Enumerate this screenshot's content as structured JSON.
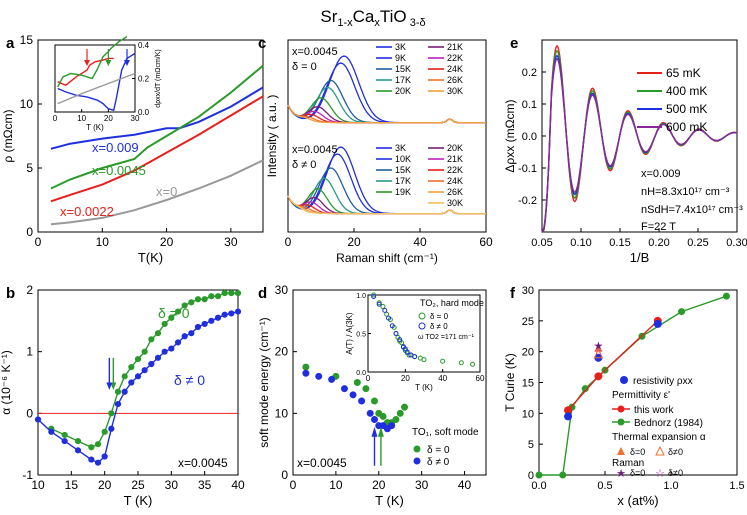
{
  "figure_title": {
    "main": "Sr",
    "sub1": "1-x",
    "mid": "Ca",
    "sub2": "x",
    "mid2": "TiO",
    "sub3": " 3-δ"
  },
  "colors": {
    "red": "#e8201c",
    "green": "#2a9a2a",
    "blue": "#1f2fe0",
    "gray": "#999999",
    "purple": "#6a1d7a",
    "magenta": "#c020c0",
    "orange": "#f07030"
  },
  "chart_data": [
    {
      "panel": "a",
      "type": "line",
      "ylabel": "ρ (mΩcm)",
      "xlabel": "T(K)",
      "xlim": [
        0,
        35
      ],
      "ylim": [
        0,
        15
      ],
      "xticks": [
        0,
        10,
        20,
        30
      ],
      "yticks": [
        0,
        5,
        10,
        15
      ],
      "series": [
        {
          "name": "x=0.009",
          "color": "#1f2fe0",
          "x": [
            2,
            5,
            10,
            15,
            18,
            20,
            22,
            25,
            30,
            35
          ],
          "y": [
            6.5,
            6.9,
            7.3,
            7.6,
            7.9,
            8.1,
            8.1,
            8.6,
            9.8,
            11.3
          ]
        },
        {
          "name": "x=0.0045",
          "color": "#2a9a2a",
          "x": [
            2,
            5,
            10,
            15,
            17,
            20,
            25,
            30,
            35
          ],
          "y": [
            3.4,
            4.1,
            5.0,
            5.7,
            6.6,
            7.5,
            9.0,
            10.9,
            13.0
          ]
        },
        {
          "name": "x=0.0022",
          "color": "#e8201c",
          "x": [
            2,
            5,
            10,
            15,
            20,
            25,
            30,
            35
          ],
          "y": [
            2.4,
            2.9,
            3.7,
            4.8,
            6.2,
            7.6,
            9.1,
            10.6
          ]
        },
        {
          "name": "x=0",
          "color": "#999999",
          "x": [
            2,
            5,
            10,
            15,
            20,
            25,
            30,
            35
          ],
          "y": [
            0.6,
            0.75,
            1.1,
            1.7,
            2.5,
            3.4,
            4.4,
            5.6
          ]
        }
      ],
      "inset": {
        "xlabel": "T (K)",
        "ylabel": "dρxx/dT (mΩcm/K)",
        "xticks": [
          0,
          10,
          20,
          30
        ],
        "yticks": [
          0.0,
          0.2,
          0.4
        ],
        "xlim": [
          0,
          30
        ],
        "ylim": [
          0,
          0.4
        ],
        "series": [
          {
            "color": "#e8201c",
            "x": [
              1,
              4,
              8,
              12,
              13,
              15,
              18,
              20,
              22
            ],
            "y": [
              0.18,
              0.16,
              0.21,
              0.25,
              0.28,
              0.3,
              0.31,
              0.32,
              0.32
            ]
          },
          {
            "color": "#2a9a2a",
            "x": [
              1,
              3,
              6,
              10,
              14,
              16,
              18,
              20,
              21,
              24,
              27
            ],
            "y": [
              0.15,
              0.21,
              0.23,
              0.22,
              0.2,
              0.26,
              0.33,
              0.36,
              0.38,
              0.42,
              0.45
            ]
          },
          {
            "color": "#1f2fe0",
            "x": [
              1,
              4,
              8,
              12,
              16,
              18,
              20,
              22,
              23,
              25,
              27,
              30
            ],
            "y": [
              0.14,
              0.12,
              0.1,
              0.09,
              0.07,
              0.05,
              0.02,
              0.01,
              0.08,
              0.25,
              0.32,
              0.35
            ]
          },
          {
            "color": "#999999",
            "x": [
              1,
              10,
              20,
              30
            ],
            "y": [
              0.05,
              0.11,
              0.17,
              0.23
            ]
          }
        ]
      }
    },
    {
      "panel": "b",
      "type": "scatter",
      "ylabel": "α (10⁻⁶ K⁻¹)",
      "xlabel": "T (K)",
      "xlim": [
        10,
        40
      ],
      "ylim": [
        -1,
        2
      ],
      "xticks": [
        10,
        15,
        20,
        25,
        30,
        35,
        40
      ],
      "yticks": [
        -1,
        0,
        1,
        2
      ],
      "annotations": [
        "δ = 0",
        "δ ≠ 0",
        "x=0.0045"
      ],
      "series": [
        {
          "name": "δ = 0",
          "color": "#2a9a2a",
          "x": [
            12,
            14,
            16,
            18,
            19,
            20,
            21,
            22,
            23,
            24,
            25,
            26,
            27,
            28,
            29,
            30,
            31,
            32,
            33,
            34,
            35,
            36,
            37,
            38,
            39,
            40
          ],
          "y": [
            -0.25,
            -0.35,
            -0.45,
            -0.55,
            -0.5,
            -0.3,
            0.0,
            0.35,
            0.6,
            0.75,
            0.88,
            1.0,
            1.2,
            1.3,
            1.45,
            1.55,
            1.65,
            1.75,
            1.8,
            1.85,
            1.85,
            1.9,
            1.9,
            1.95,
            1.95,
            1.95
          ]
        },
        {
          "name": "δ ≠ 0",
          "color": "#1f2fe0",
          "x": [
            10,
            12,
            14,
            16,
            18,
            19,
            20,
            21,
            22,
            23,
            24,
            25,
            26,
            27,
            28,
            29,
            30,
            31,
            32,
            33,
            34,
            35,
            36,
            37,
            38,
            39,
            40
          ],
          "y": [
            -0.1,
            -0.3,
            -0.45,
            -0.6,
            -0.75,
            -0.8,
            -0.7,
            -0.25,
            0.15,
            0.35,
            0.5,
            0.6,
            0.7,
            0.8,
            0.9,
            1.0,
            1.05,
            1.15,
            1.25,
            1.3,
            1.4,
            1.45,
            1.5,
            1.55,
            1.6,
            1.62,
            1.65
          ]
        }
      ]
    },
    {
      "panel": "c",
      "type": "line",
      "ylabel": "Intensity ( a.u. )",
      "xlabel": "Raman shift (cm⁻¹)",
      "xlim": [
        0,
        60
      ],
      "xticks": [
        0,
        20,
        40,
        60
      ],
      "top": {
        "labels": [
          "x=0.0045",
          "δ = 0"
        ],
        "legend": [
          "3K",
          "9K",
          "15K",
          "17K",
          "20K",
          "21K",
          "22K",
          "24K",
          "26K",
          "30K"
        ],
        "colors": [
          "#1f2fe0",
          "#1f2fe0",
          "#1f5fa0",
          "#2a9a8a",
          "#2a9a2a",
          "#7a1d7a",
          "#c020c0",
          "#e8201c",
          "#f07030",
          "#f0a040"
        ],
        "peaks": [
          17,
          16,
          13,
          12,
          10,
          9,
          8,
          7,
          6,
          5
        ],
        "heights": [
          0.95,
          0.85,
          0.6,
          0.5,
          0.35,
          0.22,
          0.15,
          0.1,
          0.06,
          0.04
        ]
      },
      "bottom": {
        "labels": [
          "x=0.0045",
          "δ ≠ 0"
        ],
        "legend": [
          "3K",
          "10K",
          "15K",
          "17K",
          "19K",
          "20K",
          "21K",
          "22K",
          "24K",
          "26K",
          "30K"
        ],
        "colors": [
          "#1f2fe0",
          "#1f2fe0",
          "#1f5fa0",
          "#2a9a8a",
          "#2a9a2a",
          "#7a1d7a",
          "#c020c0",
          "#e8201c",
          "#f07030",
          "#f0a040",
          "#f0c060"
        ],
        "peaks": [
          16,
          15,
          13,
          11,
          9,
          8,
          7,
          6,
          5,
          4,
          3
        ],
        "heights": [
          0.95,
          0.85,
          0.65,
          0.5,
          0.35,
          0.22,
          0.15,
          0.1,
          0.06,
          0.04,
          0.03
        ]
      }
    },
    {
      "panel": "d",
      "type": "scatter",
      "ylabel": "soft mode energy (cm⁻¹)",
      "xlabel": "T (K)",
      "xlim": [
        0,
        45
      ],
      "ylim": [
        0,
        30
      ],
      "xticks": [
        0,
        10,
        20,
        30,
        40
      ],
      "yticks": [
        0,
        10,
        20,
        30
      ],
      "annotations": [
        "x=0.0045",
        "TO₁, soft mode"
      ],
      "legend": [
        "δ = 0",
        "δ ≠ 0"
      ],
      "series": [
        {
          "name": "δ = 0",
          "color": "#2a9a2a",
          "x": [
            3,
            10,
            15,
            17,
            19,
            20,
            21,
            22,
            23,
            24,
            25,
            26
          ],
          "y": [
            17.5,
            16,
            15,
            14,
            12,
            10,
            9.5,
            8.5,
            8.5,
            9,
            10,
            11
          ]
        },
        {
          "name": "δ ≠ 0",
          "color": "#1f2fe0",
          "x": [
            3,
            6,
            9,
            12,
            14,
            16,
            18,
            19,
            20,
            21,
            22,
            23
          ],
          "y": [
            16.5,
            16,
            15.5,
            14,
            13,
            12,
            10,
            9,
            8,
            8,
            7.5,
            8
          ]
        }
      ],
      "inset": {
        "title": "TO₂, hard mode",
        "legend": [
          "δ = 0",
          "δ ≠ 0"
        ],
        "note": "ω TO2 =171 cm⁻¹",
        "ylabel": "A(T) / A(3K)",
        "xlabel": "T (K)",
        "xlim": [
          0,
          60
        ],
        "ylim": [
          0,
          1
        ],
        "xticks": [
          0,
          20,
          40,
          60
        ],
        "yticks": [
          0.0,
          0.5,
          1.0
        ],
        "series": [
          {
            "color": "#2a9a2a",
            "x": [
              3,
              6,
              8,
              10,
              12,
              14,
              15,
              16,
              17,
              18,
              19,
              20,
              21,
              22,
              23,
              25,
              28,
              30,
              40,
              50,
              56
            ],
            "y": [
              1.0,
              0.9,
              0.85,
              0.75,
              0.68,
              0.58,
              0.5,
              0.45,
              0.4,
              0.38,
              0.32,
              0.28,
              0.25,
              0.22,
              0.22,
              0.2,
              0.18,
              0.16,
              0.14,
              0.12,
              0.1
            ]
          },
          {
            "color": "#1f2fe0",
            "x": [
              3,
              6,
              9,
              11,
              13,
              15,
              17,
              19,
              20,
              21,
              23,
              25
            ],
            "y": [
              0.98,
              0.88,
              0.8,
              0.7,
              0.6,
              0.5,
              0.42,
              0.33,
              0.3,
              0.26,
              0.22,
              0.2
            ]
          }
        ]
      }
    },
    {
      "panel": "e",
      "type": "line",
      "ylabel": "Δρxx (mΩcm)",
      "xlabel": "1/B",
      "xlim": [
        0.05,
        0.3
      ],
      "ylim": [
        -0.3,
        0.3
      ],
      "xticks": [
        0.05,
        0.1,
        0.15,
        0.2,
        0.25,
        0.3
      ],
      "yticks": [
        -0.2,
        -0.1,
        0.0,
        0.1,
        0.2
      ],
      "annotations": [
        "x=0.009",
        "nH=8.3x10¹⁷ cm⁻³",
        "nSdH=7.4x10¹⁷ cm⁻³",
        "F=22 T"
      ],
      "series": [
        {
          "name": "65 mK",
          "color": "#e8201c",
          "amp": 0.28
        },
        {
          "name": "400 mK",
          "color": "#2a9a2a",
          "amp": 0.265
        },
        {
          "name": "500 mK",
          "color": "#1f2fe0",
          "amp": 0.25
        },
        {
          "name": "600 mK",
          "color": "#8a2a9a",
          "amp": 0.24
        }
      ]
    },
    {
      "panel": "f",
      "type": "scatter",
      "ylabel": "T Curie (K)",
      "xlabel": "x (at%)",
      "xlim": [
        0,
        1.5
      ],
      "ylim": [
        0,
        30
      ],
      "xticks": [
        0.0,
        0.5,
        1.0,
        1.5
      ],
      "yticks": [
        0,
        5,
        10,
        15,
        20,
        25,
        30
      ],
      "legend": {
        "resistivity": "resistivity ρxx",
        "permittivity": "Permittivity ε'",
        "this_work": "this work",
        "bednorz": "Bednorz (1984)",
        "thermal": "Thermal expansion α",
        "raman": "Raman",
        "d0": "δ=0",
        "dn0": "δ≠0"
      },
      "this_work": {
        "color": "#e8201c",
        "x": [
          0.22,
          0.45,
          0.9
        ],
        "y": [
          10.5,
          16,
          25
        ]
      },
      "bednorz": {
        "color": "#2a9a2a",
        "x": [
          0,
          0.18,
          0.25,
          0.35,
          0.5,
          0.78,
          1.08,
          1.42
        ],
        "y": [
          0,
          0,
          11,
          14,
          17,
          22.5,
          26.5,
          29
        ]
      },
      "resistivity": {
        "color": "#1f2fe0",
        "x": [
          0.22,
          0.45,
          0.9
        ],
        "y": [
          9.5,
          19,
          24.5
        ]
      },
      "thermal_d0": {
        "color": "#e8201c",
        "x": [
          0.45
        ],
        "y": [
          20.5
        ]
      },
      "thermal_dn0": {
        "color": "#e8201c",
        "x": [
          0.45
        ],
        "y": [
          19.5
        ]
      },
      "raman_d0": {
        "color": "#6a1d7a",
        "x": [
          0.45
        ],
        "y": [
          21
        ]
      },
      "raman_dn0": {
        "color": "#c020c0",
        "x": [
          0.45
        ],
        "y": [
          20
        ]
      }
    }
  ]
}
